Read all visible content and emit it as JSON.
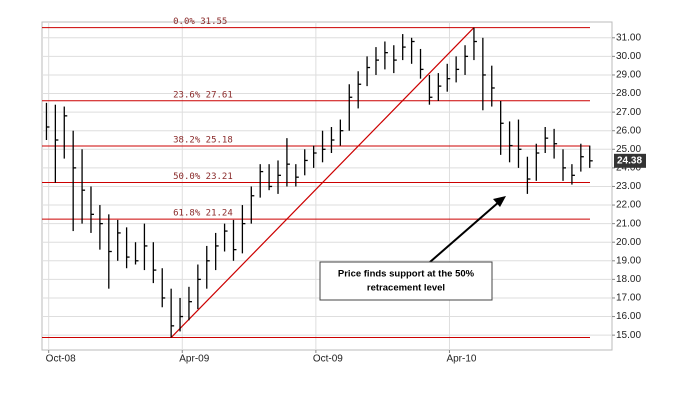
{
  "chart_data": {
    "type": "hlc",
    "color": "#000000",
    "x": [
      -0.1,
      0.3,
      0.7,
      1.1,
      1.5,
      1.9,
      2.3,
      2.7,
      3.1,
      3.5,
      3.9,
      4.3,
      4.7,
      5.1,
      5.5,
      5.9,
      6.3,
      6.7,
      7.1,
      7.5,
      7.9,
      8.3,
      8.7,
      9.1,
      9.5,
      9.9,
      10.3,
      10.7,
      11.1,
      11.5,
      11.9,
      12.3,
      12.7,
      13.1,
      13.5,
      13.9,
      14.3,
      14.7,
      15.1,
      15.5,
      15.9,
      16.3,
      16.7,
      17.1,
      17.5,
      17.9,
      18.3,
      18.7,
      19.1,
      19.5,
      19.9,
      20.3,
      20.7,
      21.1,
      21.5,
      21.9,
      22.3,
      22.7,
      23.1,
      23.5,
      23.9,
      24.3
    ],
    "high": [
      27.5,
      27.4,
      27.3,
      26.0,
      25.0,
      23.0,
      22.0,
      21.5,
      21.2,
      20.8,
      20.0,
      21.0,
      20.0,
      18.6,
      17.5,
      17.0,
      17.6,
      18.8,
      19.8,
      20.5,
      21.0,
      21.2,
      22.0,
      23.0,
      24.2,
      24.2,
      24.4,
      25.6,
      24.2,
      25.0,
      25.2,
      26.0,
      26.2,
      26.6,
      28.5,
      29.2,
      30.0,
      30.5,
      30.8,
      30.6,
      31.2,
      31.0,
      30.4,
      29.0,
      29.1,
      29.6,
      30.0,
      30.6,
      31.55,
      31.0,
      29.5,
      27.6,
      26.5,
      26.6,
      24.6,
      25.3,
      26.2,
      26.1,
      25.0,
      24.2,
      25.3,
      25.2
    ],
    "low": [
      25.5,
      23.2,
      24.5,
      20.6,
      21.0,
      20.5,
      19.6,
      17.5,
      19.0,
      18.6,
      18.8,
      18.5,
      17.8,
      16.5,
      14.87,
      15.2,
      15.8,
      16.4,
      17.5,
      18.5,
      19.5,
      19.0,
      19.4,
      21.0,
      22.4,
      22.8,
      22.6,
      23.0,
      23.0,
      23.6,
      24.0,
      24.3,
      24.8,
      25.2,
      26.0,
      27.2,
      28.4,
      29.0,
      29.3,
      29.1,
      29.8,
      29.6,
      28.8,
      27.4,
      27.6,
      28.1,
      28.6,
      29.0,
      29.8,
      27.1,
      27.3,
      24.7,
      24.3,
      24.0,
      22.6,
      23.3,
      24.8,
      24.5,
      23.3,
      23.1,
      23.8,
      24.0
    ],
    "close": [
      26.2,
      25.5,
      26.8,
      24.0,
      22.8,
      21.5,
      21.0,
      19.5,
      20.5,
      19.2,
      19.0,
      19.8,
      18.5,
      17.0,
      15.5,
      16.0,
      16.8,
      18.0,
      19.0,
      19.8,
      20.6,
      19.6,
      21.0,
      22.5,
      23.8,
      23.0,
      23.6,
      24.2,
      23.5,
      24.4,
      24.8,
      25.0,
      25.5,
      26.0,
      27.8,
      28.5,
      29.4,
      29.8,
      30.2,
      29.8,
      30.5,
      30.8,
      29.3,
      27.8,
      28.4,
      28.8,
      29.3,
      30.0,
      30.8,
      29.0,
      28.3,
      26.4,
      25.2,
      25.0,
      23.4,
      24.8,
      25.6,
      25.3,
      24.0,
      23.6,
      24.6,
      24.38
    ],
    "xlim": [
      -0.3,
      25.3
    ],
    "xticks": [
      {
        "value": 0,
        "label": "Oct-08"
      },
      {
        "value": 6,
        "label": "Apr-09"
      },
      {
        "value": 12,
        "label": "Oct-09"
      },
      {
        "value": 18,
        "label": "Apr-10"
      }
    ],
    "ylim": [
      14.2,
      31.85
    ],
    "yticks": [
      {
        "value": 15,
        "label": "15.00"
      },
      {
        "value": 16,
        "label": "16.00"
      },
      {
        "value": 17,
        "label": "17.00"
      },
      {
        "value": 18,
        "label": "18.00"
      },
      {
        "value": 19,
        "label": "19.00"
      },
      {
        "value": 20,
        "label": "20.00"
      },
      {
        "value": 21,
        "label": "21.00"
      },
      {
        "value": 22,
        "label": "22.00"
      },
      {
        "value": 23,
        "label": "23.00"
      },
      {
        "value": 24,
        "label": "24.00"
      },
      {
        "value": 25,
        "label": "25.00"
      },
      {
        "value": 26,
        "label": "26.00"
      },
      {
        "value": 27,
        "label": "27.00"
      },
      {
        "value": 28,
        "label": "28.00"
      },
      {
        "value": 29,
        "label": "29.00"
      },
      {
        "value": 30,
        "label": "30.00"
      },
      {
        "value": 31,
        "label": "31.00"
      }
    ],
    "grid": true,
    "fib": {
      "color": "#cc0000",
      "values": [
        31.55,
        27.61,
        25.18,
        23.21,
        21.24,
        14.87
      ],
      "value_labels": [
        "0.0% 31.55",
        "23.6% 27.61",
        "38.2% 25.18",
        "50.0% 23.21",
        "61.8% 21.24",
        null
      ]
    },
    "annotation": [
      "Price finds support at the 50%",
      "retracement level"
    ]
  }
}
